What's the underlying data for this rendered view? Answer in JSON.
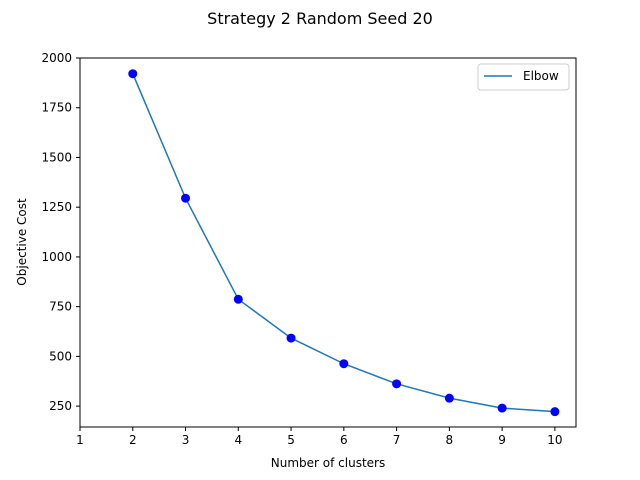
{
  "chart_data": {
    "type": "line",
    "title": "Strategy 2 Random Seed 20",
    "xlabel": "Number of clusters",
    "ylabel": "Objective Cost",
    "x": [
      2,
      3,
      4,
      5,
      6,
      7,
      8,
      9,
      10
    ],
    "series": [
      {
        "name": "Elbow",
        "values": [
          1921,
          1295,
          787,
          592,
          463,
          362,
          290,
          240,
          222
        ],
        "line_color": "#1f77b4",
        "marker_color": "#0000ff"
      }
    ],
    "xlim": [
      1,
      10.4
    ],
    "ylim": [
      145,
      2000
    ],
    "xticks": [
      1,
      2,
      3,
      4,
      5,
      6,
      7,
      8,
      9,
      10
    ],
    "yticks": [
      250,
      500,
      750,
      1000,
      1250,
      1500,
      1750,
      2000
    ],
    "grid": false,
    "legend_position": "top-right"
  }
}
